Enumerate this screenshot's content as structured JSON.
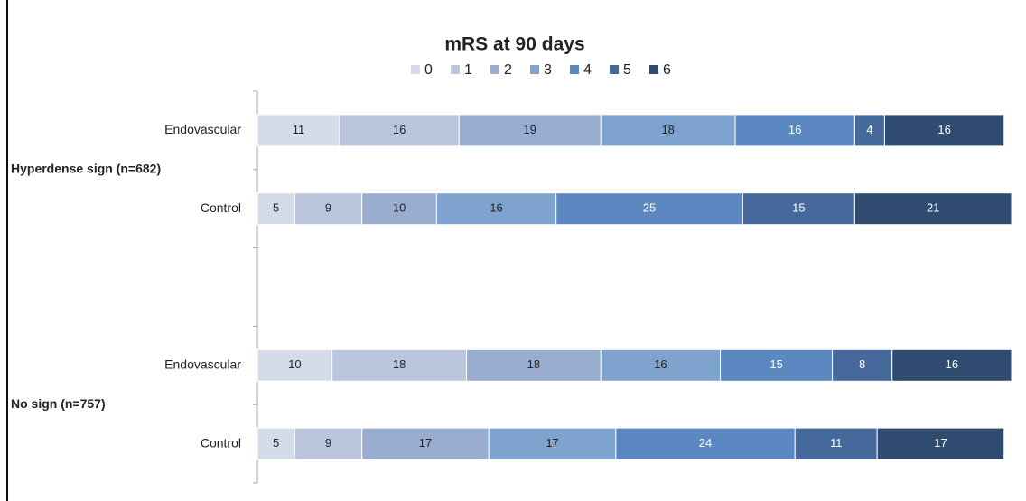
{
  "chart_data": {
    "type": "stacked-bar-horizontal",
    "title": "mRS at 90 days",
    "categories": [
      "Endovascular",
      "Control",
      null,
      "Endovascular",
      "Control"
    ],
    "groups": [
      "Hyperdense sign (n=682)",
      "No sign (n=757)"
    ],
    "series": [
      {
        "name": "0",
        "color": "#d5dce9",
        "values": [
          11,
          5,
          null,
          10,
          5
        ]
      },
      {
        "name": "1",
        "color": "#b9c6dd",
        "values": [
          16,
          9,
          null,
          18,
          9
        ]
      },
      {
        "name": "2",
        "color": "#98add0",
        "values": [
          19,
          10,
          null,
          18,
          17
        ]
      },
      {
        "name": "3",
        "color": "#7ea3cf",
        "values": [
          18,
          16,
          null,
          16,
          17
        ]
      },
      {
        "name": "4",
        "color": "#5b88c0",
        "values": [
          16,
          25,
          null,
          15,
          24
        ]
      },
      {
        "name": "5",
        "color": "#44699a",
        "values": [
          4,
          15,
          null,
          8,
          11
        ]
      },
      {
        "name": "6",
        "color": "#2f4b70",
        "values": [
          16,
          21,
          null,
          16,
          17
        ]
      }
    ],
    "xlim": [
      0,
      101
    ],
    "legend": "top"
  }
}
